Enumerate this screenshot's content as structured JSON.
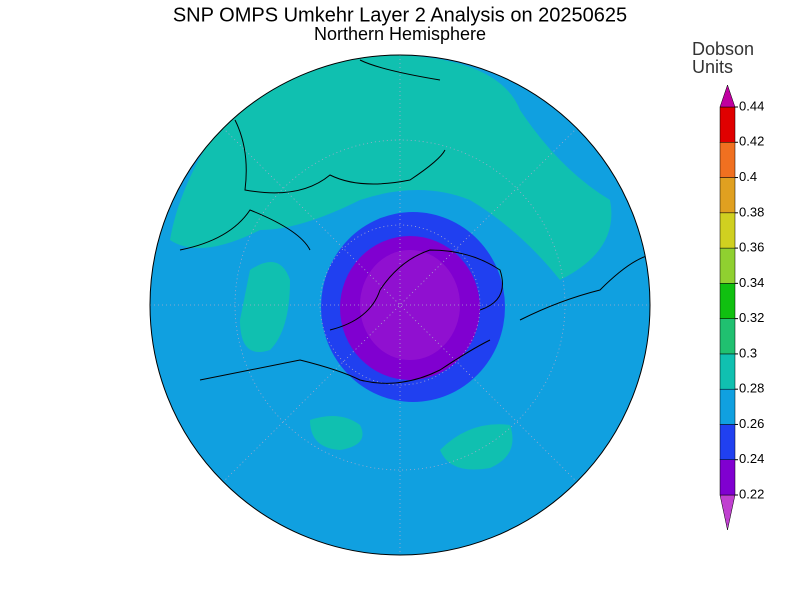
{
  "title": "SNP OMPS Umkehr Layer 2 Analysis on 20250625",
  "subtitle": "Northern Hemisphere",
  "colorbar": {
    "label": [
      "Dobson",
      "Units"
    ],
    "ticks": [
      0.22,
      0.24,
      0.26,
      0.28,
      0.3,
      0.32,
      0.34,
      0.36,
      0.38,
      0.4,
      0.42,
      0.44
    ],
    "colors": [
      "#c040d0",
      "#8000d0",
      "#2040f0",
      "#10a0e0",
      "#10c0b0",
      "#20c070",
      "#10c010",
      "#90d030",
      "#d0d020",
      "#e0a020",
      "#f07020",
      "#e00000",
      "#c000a0"
    ]
  }
}
